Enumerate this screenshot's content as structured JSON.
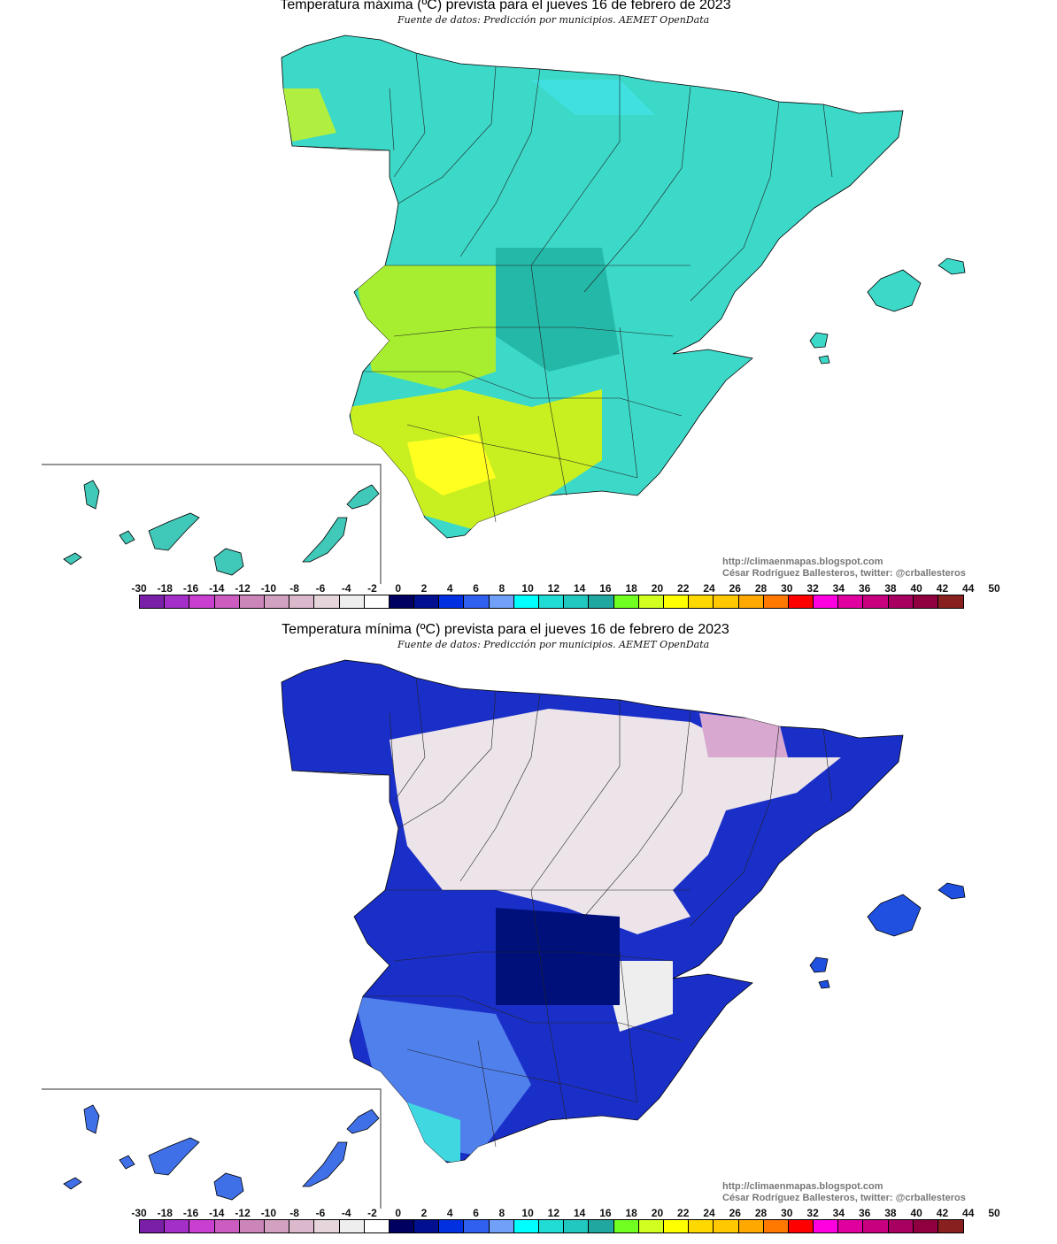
{
  "maps": [
    {
      "title": "Temperatura máxima (ºC) prevista para el jueves 16 de febrero de 2023",
      "source": "Fuente de datos: Predicción por municipios. AEMET OpenData",
      "variable": "max",
      "base_color": "#3cd8c8"
    },
    {
      "title": "Temperatura mínima (ºC) prevista para el jueves 16 de febrero de 2023",
      "source": "Fuente de datos: Predicción por municipios. AEMET OpenData",
      "variable": "min",
      "base_color": "#1a2fc8"
    }
  ],
  "credits": {
    "url": "http://climaenmapas.blogspot.com",
    "author": "César Rodríguez Ballesteros, twitter: @crballesteros"
  },
  "legend": {
    "labels": [
      "-30",
      "-18",
      "-16",
      "-14",
      "-12",
      "-10",
      "-8",
      "-6",
      "-4",
      "-2",
      "0",
      "2",
      "4",
      "6",
      "8",
      "10",
      "12",
      "14",
      "16",
      "18",
      "20",
      "22",
      "24",
      "26",
      "28",
      "30",
      "32",
      "34",
      "36",
      "38",
      "40",
      "42",
      "44",
      "50"
    ],
    "colors": [
      "#7a1fa8",
      "#a42ec8",
      "#c940d0",
      "#cc5cc0",
      "#cc85b8",
      "#d2a0c0",
      "#dbb8cc",
      "#e6d6dc",
      "#eeeeee",
      "#ffffff",
      "#000060",
      "#001090",
      "#0030e0",
      "#3060f0",
      "#70a0f8",
      "#00ffff",
      "#20dcd4",
      "#20c8c0",
      "#20a8a0",
      "#70ff20",
      "#d0ff20",
      "#ffff00",
      "#ffd800",
      "#ffc800",
      "#ffa800",
      "#ff7800",
      "#ff0000",
      "#ff00e0",
      "#e000a0",
      "#c80080",
      "#a80060",
      "#900040",
      "#882020"
    ]
  }
}
